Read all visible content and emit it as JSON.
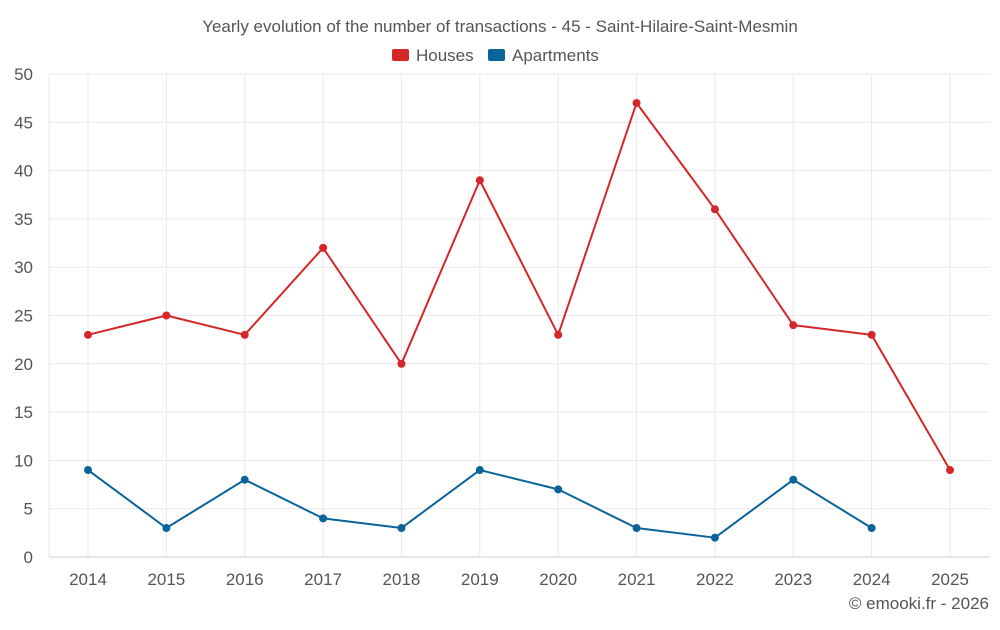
{
  "chart_data": {
    "type": "line",
    "title": "Yearly evolution of the number of transactions - 45 - Saint-Hilaire-Saint-Mesmin",
    "categories": [
      "2014",
      "2015",
      "2016",
      "2017",
      "2018",
      "2019",
      "2020",
      "2021",
      "2022",
      "2023",
      "2024",
      "2025"
    ],
    "series": [
      {
        "name": "Houses",
        "color": "#d62728",
        "values": [
          23,
          25,
          23,
          32,
          20,
          39,
          23,
          47,
          36,
          24,
          23,
          9
        ]
      },
      {
        "name": "Apartments",
        "color": "#08649a",
        "values": [
          9,
          3,
          8,
          4,
          3,
          9,
          7,
          3,
          2,
          8,
          3,
          null
        ]
      }
    ],
    "ylim": [
      0,
      50
    ],
    "yticks": [
      0,
      5,
      10,
      15,
      20,
      25,
      30,
      35,
      40,
      45,
      50
    ],
    "grid": true,
    "legend": "top-center",
    "credit": "© emooki.fr - 2026"
  }
}
